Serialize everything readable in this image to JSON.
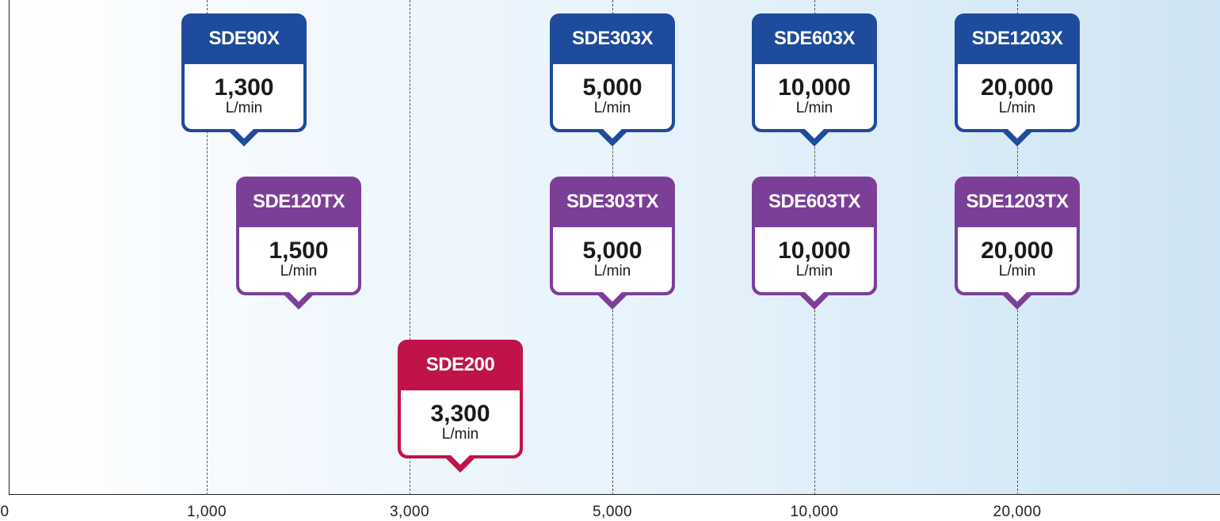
{
  "chart_data": {
    "type": "scatter",
    "title": "",
    "xlabel": "",
    "ylabel": "",
    "x_ticks": [
      "0",
      "1,000",
      "3,000",
      "5,000",
      "10,000",
      "20,000"
    ],
    "grid": true,
    "series": [
      {
        "group": "X",
        "color": "#1e4b9b",
        "points": [
          {
            "model": "SDE90X",
            "value": 1300,
            "value_label": "1,300",
            "unit": "L/min"
          },
          {
            "model": "SDE303X",
            "value": 5000,
            "value_label": "5,000",
            "unit": "L/min"
          },
          {
            "model": "SDE603X",
            "value": 10000,
            "value_label": "10,000",
            "unit": "L/min"
          },
          {
            "model": "SDE1203X",
            "value": 20000,
            "value_label": "20,000",
            "unit": "L/min"
          }
        ]
      },
      {
        "group": "TX",
        "color": "#7b3f98",
        "points": [
          {
            "model": "SDE120TX",
            "value": 1500,
            "value_label": "1,500",
            "unit": "L/min"
          },
          {
            "model": "SDE303TX",
            "value": 5000,
            "value_label": "5,000",
            "unit": "L/min"
          },
          {
            "model": "SDE603TX",
            "value": 10000,
            "value_label": "10,000",
            "unit": "L/min"
          },
          {
            "model": "SDE1203TX",
            "value": 20000,
            "value_label": "20,000",
            "unit": "L/min"
          }
        ]
      },
      {
        "group": "200",
        "color": "#c0134a",
        "points": [
          {
            "model": "SDE200",
            "value": 3300,
            "value_label": "3,300",
            "unit": "L/min"
          }
        ]
      }
    ]
  }
}
